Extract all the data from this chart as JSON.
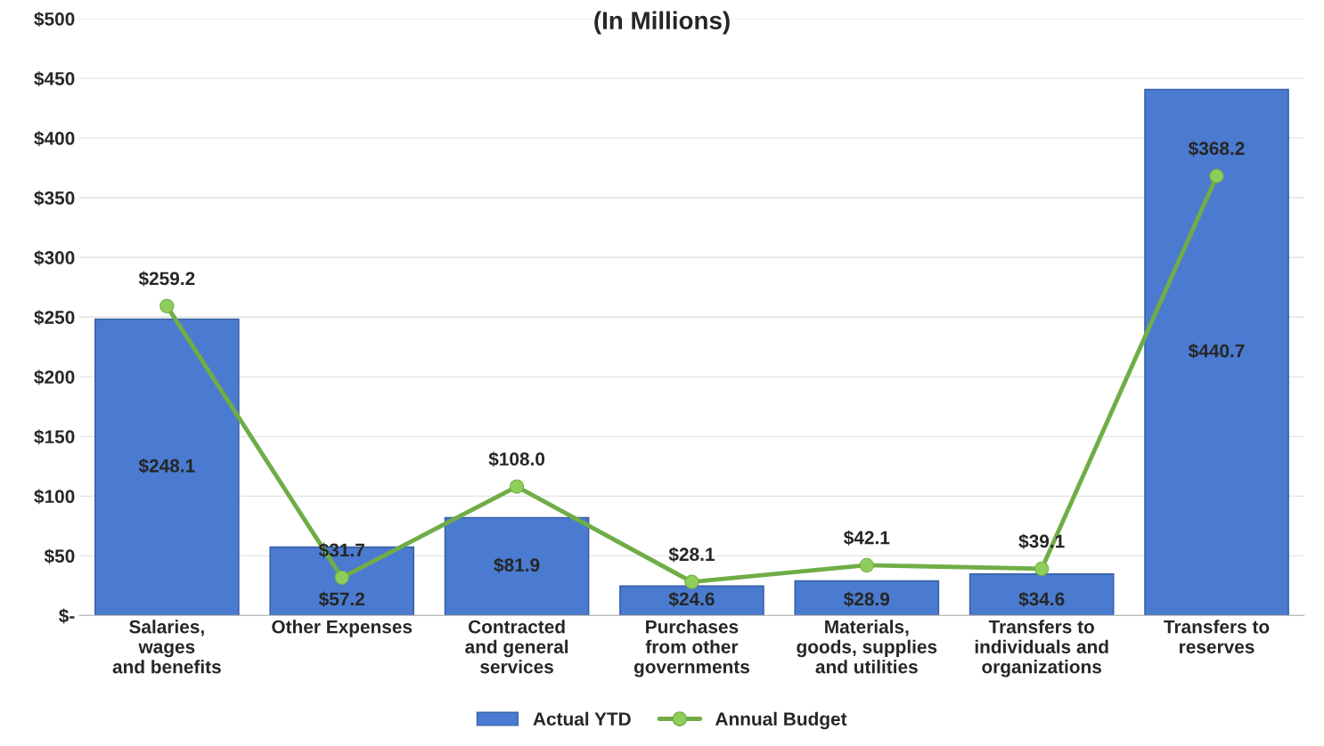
{
  "chart_data": {
    "type": "bar",
    "title": "(In Millions)",
    "categories": [
      "Salaries,\nwages\nand benefits",
      "Other Expenses",
      "Contracted\nand general\nservices",
      "Purchases\nfrom other\ngovernments",
      "Materials,\ngoods, supplies\nand utilities",
      "Transfers to\nindividuals and\norganizations",
      "Transfers to\nreserves"
    ],
    "series": [
      {
        "name": "Actual YTD",
        "color": "#4a7bd0",
        "values": [
          248.1,
          57.2,
          81.9,
          24.6,
          28.9,
          34.6,
          440.7
        ],
        "value_labels": [
          "$248.1",
          "$57.2",
          "$81.9",
          "$24.6",
          "$28.9",
          "$34.6",
          "$440.7"
        ]
      },
      {
        "name": "Annual Budget",
        "type": "line",
        "color": "#70ad47",
        "values": [
          259.2,
          31.7,
          108.0,
          28.1,
          42.1,
          39.1,
          368.2
        ],
        "value_labels": [
          "$259.2",
          "$31.7",
          "$108.0",
          "$28.1",
          "$42.1",
          "$39.1",
          "$368.2"
        ]
      }
    ],
    "ylim": [
      0,
      500
    ],
    "yticks": [
      {
        "value": 0,
        "label": "$-"
      },
      {
        "value": 50,
        "label": "$50"
      },
      {
        "value": 100,
        "label": "$100"
      },
      {
        "value": 150,
        "label": "$150"
      },
      {
        "value": 200,
        "label": "$200"
      },
      {
        "value": 250,
        "label": "$250"
      },
      {
        "value": 300,
        "label": "$300"
      },
      {
        "value": 350,
        "label": "$350"
      },
      {
        "value": 400,
        "label": "$400"
      },
      {
        "value": 450,
        "label": "$450"
      },
      {
        "value": 500,
        "label": "$500"
      }
    ],
    "grid": "y",
    "legend": "bottom",
    "marker": "circle",
    "line_style": "solid"
  }
}
